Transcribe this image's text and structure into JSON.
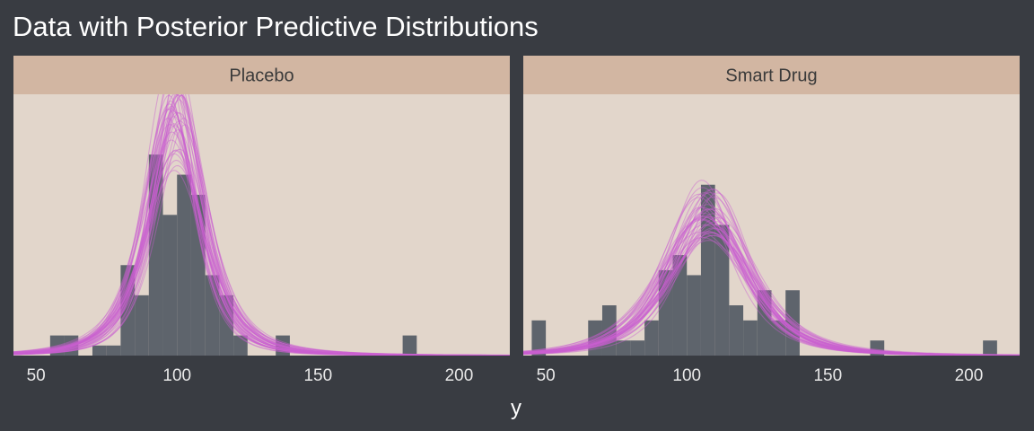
{
  "chart_data": {
    "type": "histogram",
    "title": "Data with Posterior Predictive Distributions",
    "xlabel": "y",
    "ylabel": "",
    "xlim": [
      42,
      218
    ],
    "x_ticks": [
      50,
      100,
      150,
      200
    ],
    "x_tick_labels": [
      "50",
      "100",
      "150",
      "200"
    ],
    "y_ticks_shown": false,
    "grid": false,
    "bin_width": 5,
    "colors": {
      "background": "#393c42",
      "panel": "#e2d6cb",
      "strip": "#d2b6a2",
      "bars": "#5e646c",
      "curves": "#c95fd0",
      "text": "#ffffff",
      "strip_text": "#3a3a3a",
      "tick_text": "#e8e8e8"
    },
    "panels": [
      {
        "label": "Placebo",
        "ylim": [
          0,
          26
        ],
        "bins": [
          {
            "x0": 55,
            "x1": 60,
            "count": 2
          },
          {
            "x0": 60,
            "x1": 65,
            "count": 2
          },
          {
            "x0": 70,
            "x1": 75,
            "count": 1
          },
          {
            "x0": 75,
            "x1": 80,
            "count": 1
          },
          {
            "x0": 80,
            "x1": 85,
            "count": 9
          },
          {
            "x0": 85,
            "x1": 90,
            "count": 6
          },
          {
            "x0": 90,
            "x1": 95,
            "count": 20
          },
          {
            "x0": 95,
            "x1": 100,
            "count": 14
          },
          {
            "x0": 100,
            "x1": 105,
            "count": 18
          },
          {
            "x0": 105,
            "x1": 110,
            "count": 16
          },
          {
            "x0": 110,
            "x1": 115,
            "count": 8
          },
          {
            "x0": 115,
            "x1": 120,
            "count": 6
          },
          {
            "x0": 120,
            "x1": 125,
            "count": 2
          },
          {
            "x0": 135,
            "x1": 140,
            "count": 2
          },
          {
            "x0": 180,
            "x1": 185,
            "count": 2
          }
        ],
        "posterior_curves": {
          "count": 40,
          "loc": 99.5,
          "loc_spread": 3.5,
          "scale": 10,
          "scale_spread": 2.0,
          "nu": 2.5,
          "peak": 24
        }
      },
      {
        "label": "Smart Drug",
        "ylim": [
          0,
          26
        ],
        "bins": [
          {
            "x0": 45,
            "x1": 50,
            "count": 3.5
          },
          {
            "x0": 65,
            "x1": 70,
            "count": 3.5
          },
          {
            "x0": 70,
            "x1": 75,
            "count": 5
          },
          {
            "x0": 75,
            "x1": 80,
            "count": 1.5
          },
          {
            "x0": 80,
            "x1": 85,
            "count": 1.5
          },
          {
            "x0": 85,
            "x1": 90,
            "count": 3.5
          },
          {
            "x0": 90,
            "x1": 95,
            "count": 8.5
          },
          {
            "x0": 95,
            "x1": 100,
            "count": 10
          },
          {
            "x0": 100,
            "x1": 105,
            "count": 8
          },
          {
            "x0": 105,
            "x1": 110,
            "count": 17
          },
          {
            "x0": 110,
            "x1": 115,
            "count": 13
          },
          {
            "x0": 115,
            "x1": 120,
            "count": 5
          },
          {
            "x0": 120,
            "x1": 125,
            "count": 3.5
          },
          {
            "x0": 125,
            "x1": 130,
            "count": 6.5
          },
          {
            "x0": 130,
            "x1": 135,
            "count": 3.5
          },
          {
            "x0": 135,
            "x1": 140,
            "count": 6.5
          },
          {
            "x0": 165,
            "x1": 170,
            "count": 1.5
          },
          {
            "x0": 205,
            "x1": 210,
            "count": 1.5
          }
        ],
        "posterior_curves": {
          "count": 40,
          "loc": 107.5,
          "loc_spread": 3.5,
          "scale": 15,
          "scale_spread": 2.5,
          "nu": 3,
          "peak": 14
        }
      }
    ]
  }
}
